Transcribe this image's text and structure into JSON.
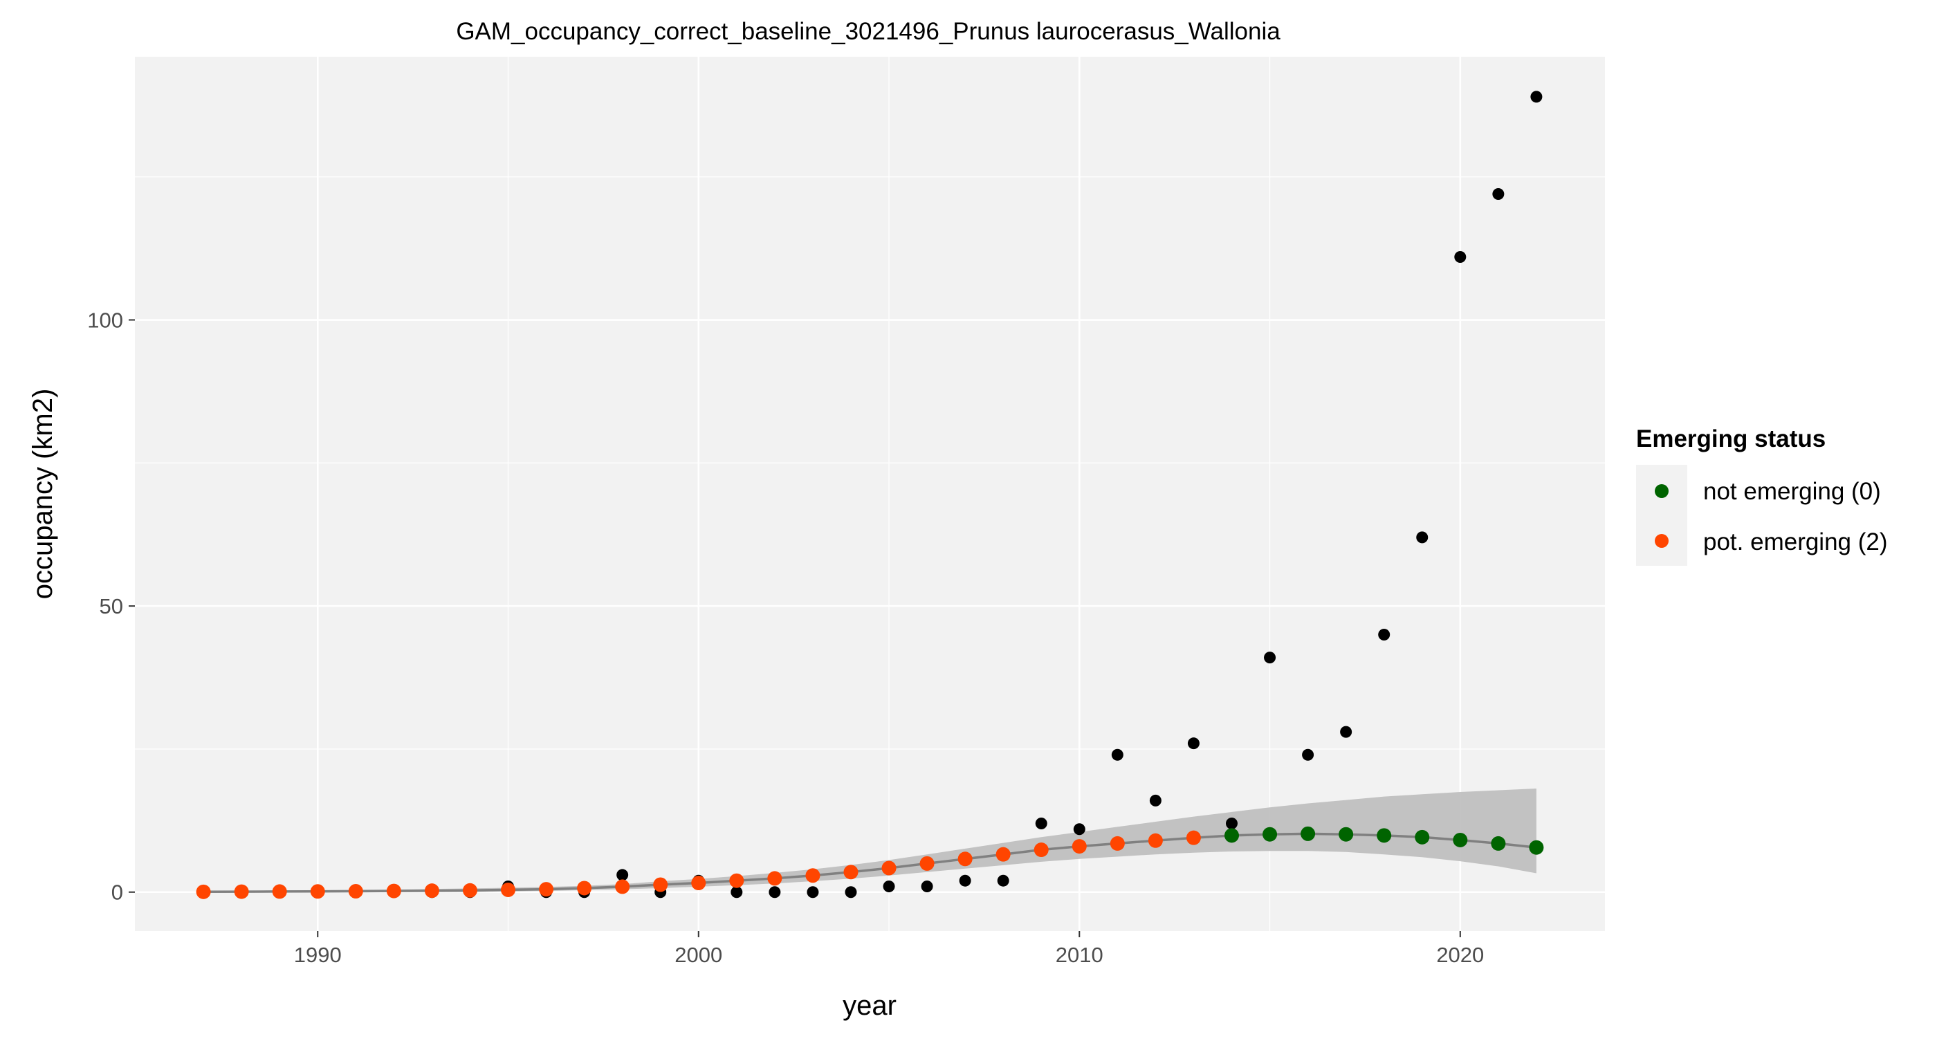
{
  "chart_data": {
    "type": "scatter",
    "title": "GAM_occupancy_correct_baseline_3021496_Prunus laurocerasus_Wallonia",
    "xlabel": "year",
    "ylabel": "occupancy (km2)",
    "xlim": [
      1985.2,
      2023.8
    ],
    "ylim": [
      -6.8,
      146
    ],
    "x_ticks": [
      1990,
      2000,
      2010,
      2020
    ],
    "y_ticks": [
      0,
      50,
      100
    ],
    "grid": true,
    "background": "#f2f2f2",
    "legend": {
      "title": "Emerging status",
      "position": "right",
      "entries": [
        {
          "label": "not emerging (0)",
          "color": "#006400"
        },
        {
          "label": "pot. emerging (2)",
          "color": "#ff4500"
        }
      ]
    },
    "observed": {
      "color": "#000000",
      "x": [
        1987,
        1988,
        1989,
        1990,
        1991,
        1992,
        1993,
        1994,
        1995,
        1996,
        1997,
        1998,
        1999,
        2000,
        2001,
        2002,
        2003,
        2004,
        2005,
        2006,
        2007,
        2008,
        2009,
        2010,
        2011,
        2012,
        2013,
        2014,
        2015,
        2016,
        2017,
        2018,
        2019,
        2020,
        2021,
        2022
      ],
      "y": [
        0,
        0,
        0,
        0,
        0,
        0,
        0,
        0,
        1,
        0,
        0,
        3,
        0,
        2,
        0,
        0,
        0,
        0,
        1,
        1,
        2,
        2,
        12,
        11,
        24,
        16,
        26,
        12,
        41,
        24,
        28,
        45,
        62,
        111,
        122,
        139
      ]
    },
    "fit": {
      "line_color": "#808080",
      "band_color": "#bdbdbd",
      "x": [
        1987,
        1988,
        1989,
        1990,
        1991,
        1992,
        1993,
        1994,
        1995,
        1996,
        1997,
        1998,
        1999,
        2000,
        2001,
        2002,
        2003,
        2004,
        2005,
        2006,
        2007,
        2008,
        2009,
        2010,
        2011,
        2012,
        2013,
        2014,
        2015,
        2016,
        2017,
        2018,
        2019,
        2020,
        2021,
        2022
      ],
      "y": [
        0.05,
        0.08,
        0.1,
        0.12,
        0.15,
        0.2,
        0.25,
        0.3,
        0.4,
        0.5,
        0.7,
        0.95,
        1.3,
        1.6,
        2.0,
        2.4,
        2.9,
        3.5,
        4.2,
        5.0,
        5.8,
        6.6,
        7.4,
        8.0,
        8.5,
        9.0,
        9.5,
        9.9,
        10.1,
        10.2,
        10.1,
        9.9,
        9.6,
        9.1,
        8.5,
        7.8
      ],
      "lower": [
        0.0,
        0.0,
        0.0,
        0.0,
        0.0,
        0.0,
        0.0,
        0.0,
        0.1,
        0.2,
        0.35,
        0.5,
        0.7,
        0.95,
        1.2,
        1.5,
        1.9,
        2.35,
        2.9,
        3.5,
        4.1,
        4.7,
        5.3,
        5.8,
        6.2,
        6.6,
        6.9,
        7.1,
        7.2,
        7.2,
        7.0,
        6.6,
        6.1,
        5.4,
        4.5,
        3.3
      ],
      "upper": [
        0.2,
        0.25,
        0.3,
        0.35,
        0.4,
        0.45,
        0.55,
        0.65,
        0.75,
        0.9,
        1.1,
        1.4,
        1.9,
        2.3,
        2.8,
        3.35,
        4.0,
        4.75,
        5.6,
        6.6,
        7.6,
        8.6,
        9.6,
        10.5,
        11.4,
        12.3,
        13.2,
        14.0,
        14.8,
        15.5,
        16.1,
        16.7,
        17.1,
        17.5,
        17.8,
        18.1
      ],
      "status": [
        2,
        2,
        2,
        2,
        2,
        2,
        2,
        2,
        2,
        2,
        2,
        2,
        2,
        2,
        2,
        2,
        2,
        2,
        2,
        2,
        2,
        2,
        2,
        2,
        2,
        2,
        2,
        0,
        0,
        0,
        0,
        0,
        0,
        0,
        0,
        0
      ]
    }
  }
}
